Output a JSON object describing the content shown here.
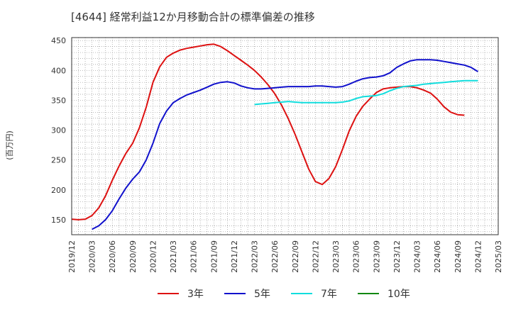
{
  "chart_data": {
    "type": "line",
    "title": "[4644]  経常利益12か月移動合計の標準偏差の推移",
    "ylabel": "(百万円)",
    "xlabel": "",
    "ylim": [
      125,
      455
    ],
    "yticks": [
      150,
      200,
      250,
      300,
      350,
      400,
      450
    ],
    "xlim": [
      "2019-12",
      "2025-03"
    ],
    "xticks": [
      "2019/12",
      "2020/03",
      "2020/06",
      "2020/09",
      "2020/12",
      "2021/03",
      "2021/06",
      "2021/09",
      "2021/12",
      "2022/03",
      "2022/06",
      "2022/09",
      "2022/12",
      "2023/03",
      "2023/06",
      "2023/09",
      "2023/12",
      "2024/03",
      "2024/06",
      "2024/09",
      "2024/12",
      "2025/03"
    ],
    "grid": true,
    "legend_position": "bottom",
    "series": [
      {
        "name": "3年",
        "color": "#dd1111",
        "points": [
          [
            "2019-12",
            151
          ],
          [
            "2020-01",
            150
          ],
          [
            "2020-02",
            151
          ],
          [
            "2020-03",
            157
          ],
          [
            "2020-04",
            170
          ],
          [
            "2020-05",
            190
          ],
          [
            "2020-06",
            216
          ],
          [
            "2020-07",
            240
          ],
          [
            "2020-08",
            261
          ],
          [
            "2020-09",
            278
          ],
          [
            "2020-10",
            304
          ],
          [
            "2020-11",
            338
          ],
          [
            "2020-12",
            380
          ],
          [
            "2021-01",
            406
          ],
          [
            "2021-02",
            422
          ],
          [
            "2021-03",
            429
          ],
          [
            "2021-04",
            434
          ],
          [
            "2021-05",
            437
          ],
          [
            "2021-06",
            439
          ],
          [
            "2021-07",
            441
          ],
          [
            "2021-08",
            443
          ],
          [
            "2021-09",
            444
          ],
          [
            "2021-10",
            440
          ],
          [
            "2021-11",
            433
          ],
          [
            "2021-12",
            425
          ],
          [
            "2022-01",
            417
          ],
          [
            "2022-02",
            409
          ],
          [
            "2022-03",
            400
          ],
          [
            "2022-04",
            389
          ],
          [
            "2022-05",
            376
          ],
          [
            "2022-06",
            361
          ],
          [
            "2022-07",
            342
          ],
          [
            "2022-08",
            319
          ],
          [
            "2022-09",
            293
          ],
          [
            "2022-10",
            264
          ],
          [
            "2022-11",
            235
          ],
          [
            "2022-12",
            214
          ],
          [
            "2023-01",
            209
          ],
          [
            "2023-02",
            219
          ],
          [
            "2023-03",
            239
          ],
          [
            "2023-04",
            268
          ],
          [
            "2023-05",
            299
          ],
          [
            "2023-06",
            323
          ],
          [
            "2023-07",
            340
          ],
          [
            "2023-08",
            352
          ],
          [
            "2023-09",
            363
          ],
          [
            "2023-10",
            369
          ],
          [
            "2023-11",
            371
          ],
          [
            "2023-12",
            372
          ],
          [
            "2024-01",
            373
          ],
          [
            "2024-02",
            373
          ],
          [
            "2024-03",
            371
          ],
          [
            "2024-04",
            367
          ],
          [
            "2024-05",
            362
          ],
          [
            "2024-06",
            352
          ],
          [
            "2024-07",
            339
          ],
          [
            "2024-08",
            330
          ],
          [
            "2024-09",
            326
          ],
          [
            "2024-10",
            325
          ]
        ]
      },
      {
        "name": "5年",
        "color": "#1111cc",
        "points": [
          [
            "2020-03",
            134
          ],
          [
            "2020-04",
            140
          ],
          [
            "2020-05",
            150
          ],
          [
            "2020-06",
            165
          ],
          [
            "2020-07",
            185
          ],
          [
            "2020-08",
            203
          ],
          [
            "2020-09",
            218
          ],
          [
            "2020-10",
            230
          ],
          [
            "2020-11",
            250
          ],
          [
            "2020-12",
            278
          ],
          [
            "2021-01",
            311
          ],
          [
            "2021-02",
            332
          ],
          [
            "2021-03",
            346
          ],
          [
            "2021-04",
            353
          ],
          [
            "2021-05",
            359
          ],
          [
            "2021-06",
            363
          ],
          [
            "2021-07",
            367
          ],
          [
            "2021-08",
            372
          ],
          [
            "2021-09",
            377
          ],
          [
            "2021-10",
            380
          ],
          [
            "2021-11",
            381
          ],
          [
            "2021-12",
            379
          ],
          [
            "2022-01",
            374
          ],
          [
            "2022-02",
            371
          ],
          [
            "2022-03",
            369
          ],
          [
            "2022-04",
            369
          ],
          [
            "2022-05",
            370
          ],
          [
            "2022-06",
            371
          ],
          [
            "2022-07",
            372
          ],
          [
            "2022-08",
            373
          ],
          [
            "2022-09",
            373
          ],
          [
            "2022-10",
            373
          ],
          [
            "2022-11",
            373
          ],
          [
            "2022-12",
            374
          ],
          [
            "2023-01",
            374
          ],
          [
            "2023-02",
            373
          ],
          [
            "2023-03",
            372
          ],
          [
            "2023-04",
            373
          ],
          [
            "2023-05",
            377
          ],
          [
            "2023-06",
            382
          ],
          [
            "2023-07",
            386
          ],
          [
            "2023-08",
            388
          ],
          [
            "2023-09",
            389
          ],
          [
            "2023-10",
            391
          ],
          [
            "2023-11",
            396
          ],
          [
            "2023-12",
            405
          ],
          [
            "2024-01",
            411
          ],
          [
            "2024-02",
            416
          ],
          [
            "2024-03",
            418
          ],
          [
            "2024-04",
            418
          ],
          [
            "2024-05",
            418
          ],
          [
            "2024-06",
            417
          ],
          [
            "2024-07",
            415
          ],
          [
            "2024-08",
            413
          ],
          [
            "2024-09",
            411
          ],
          [
            "2024-10",
            409
          ],
          [
            "2024-11",
            405
          ],
          [
            "2024-12",
            398
          ]
        ]
      },
      {
        "name": "7年",
        "color": "#11dddd",
        "points": [
          [
            "2022-03",
            343
          ],
          [
            "2022-04",
            344
          ],
          [
            "2022-05",
            345
          ],
          [
            "2022-06",
            346
          ],
          [
            "2022-07",
            347
          ],
          [
            "2022-08",
            348
          ],
          [
            "2022-09",
            347
          ],
          [
            "2022-10",
            346
          ],
          [
            "2022-11",
            346
          ],
          [
            "2022-12",
            346
          ],
          [
            "2023-01",
            346
          ],
          [
            "2023-02",
            346
          ],
          [
            "2023-03",
            346
          ],
          [
            "2023-04",
            347
          ],
          [
            "2023-05",
            349
          ],
          [
            "2023-06",
            353
          ],
          [
            "2023-07",
            356
          ],
          [
            "2023-08",
            357
          ],
          [
            "2023-09",
            358
          ],
          [
            "2023-10",
            361
          ],
          [
            "2023-11",
            366
          ],
          [
            "2023-12",
            370
          ],
          [
            "2024-01",
            373
          ],
          [
            "2024-02",
            374
          ],
          [
            "2024-03",
            375
          ],
          [
            "2024-04",
            377
          ],
          [
            "2024-05",
            378
          ],
          [
            "2024-06",
            379
          ],
          [
            "2024-07",
            380
          ],
          [
            "2024-08",
            381
          ],
          [
            "2024-09",
            382
          ],
          [
            "2024-10",
            383
          ],
          [
            "2024-11",
            383
          ],
          [
            "2024-12",
            383
          ]
        ]
      },
      {
        "name": "10年",
        "color": "#118811",
        "points": []
      }
    ]
  }
}
